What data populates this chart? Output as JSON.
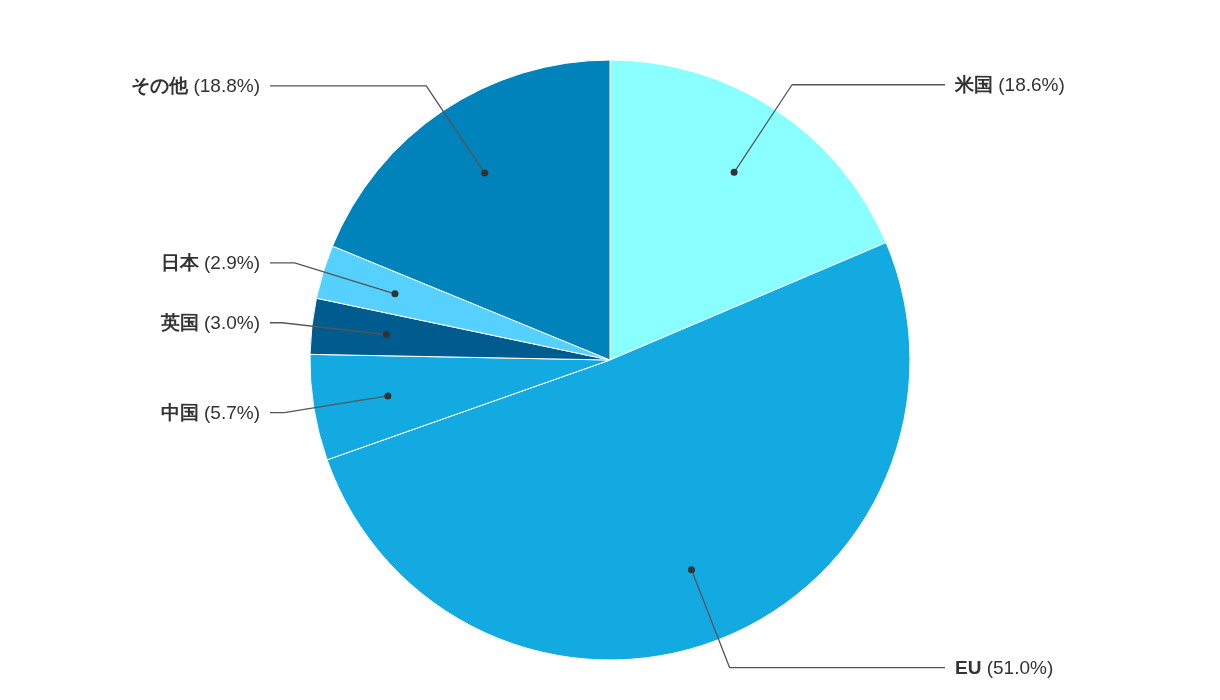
{
  "chart_data": {
    "type": "pie",
    "categories": [
      "米国",
      "EU",
      "中国",
      "英国",
      "日本",
      "その他"
    ],
    "values": [
      18.6,
      51.0,
      5.7,
      3.0,
      2.9,
      18.8
    ],
    "value_labels": [
      "(18.6%)",
      "(51.0%)",
      "(5.7%)",
      "(3.0%)",
      "(2.9%)",
      "(18.8%)"
    ],
    "colors": [
      "#8affff",
      "#13aae2",
      "#13aae2",
      "#005b8e",
      "#55d0ff",
      "#0083bb"
    ]
  }
}
